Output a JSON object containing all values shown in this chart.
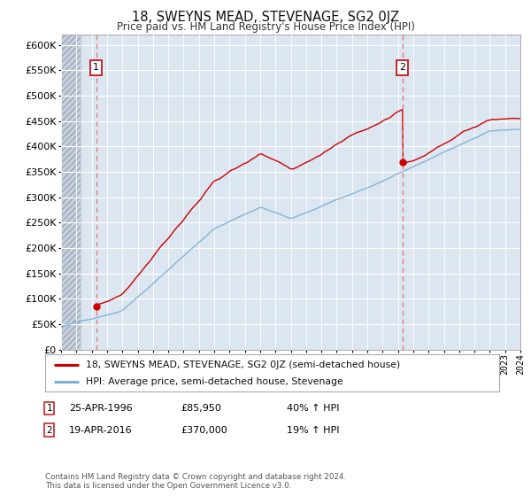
{
  "title": "18, SWEYNS MEAD, STEVENAGE, SG2 0JZ",
  "subtitle": "Price paid vs. HM Land Registry's House Price Index (HPI)",
  "legend_line1": "18, SWEYNS MEAD, STEVENAGE, SG2 0JZ (semi-detached house)",
  "legend_line2": "HPI: Average price, semi-detached house, Stevenage",
  "annotation1_date": "25-APR-1996",
  "annotation1_price": "£85,950",
  "annotation1_hpi": "40% ↑ HPI",
  "annotation1_year": 1996.3,
  "annotation1_value": 85950,
  "annotation2_date": "19-APR-2016",
  "annotation2_price": "£370,000",
  "annotation2_hpi": "19% ↑ HPI",
  "annotation2_year": 2016.3,
  "annotation2_value": 370000,
  "xmin": 1994,
  "xmax": 2024,
  "ymin": 0,
  "ymax": 620000,
  "yticks": [
    0,
    50000,
    100000,
    150000,
    200000,
    250000,
    300000,
    350000,
    400000,
    450000,
    500000,
    550000,
    600000
  ],
  "background_color": "#ffffff",
  "plot_bg_color": "#dce6f1",
  "grid_color": "#ffffff",
  "red_line_color": "#cc0000",
  "blue_line_color": "#7bafd4",
  "dashed_red_color": "#e08080",
  "footnote": "Contains HM Land Registry data © Crown copyright and database right 2024.\nThis data is licensed under the Open Government Licence v3.0."
}
